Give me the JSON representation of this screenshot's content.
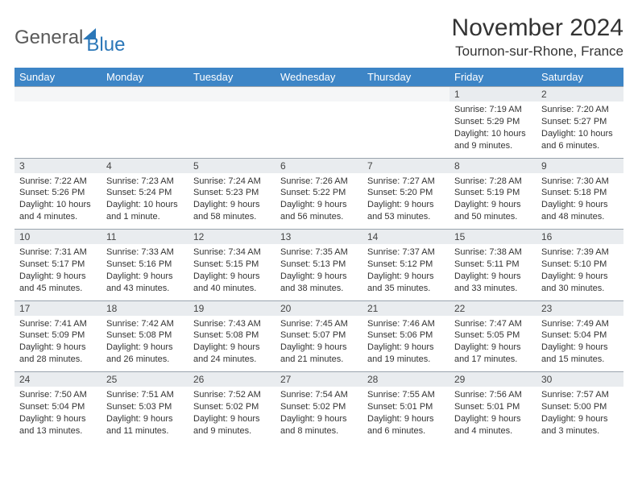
{
  "logo": {
    "general": "General",
    "blue": "Blue"
  },
  "title": "November 2024",
  "location": "Tournon-sur-Rhone, France",
  "colors": {
    "header_bg": "#3d85c6",
    "header_text": "#ffffff",
    "daynum_bg": "#e9ecef",
    "daynum_border": "#9aa4ae",
    "body_text": "#333333",
    "logo_gray": "#5a5a5a",
    "logo_blue": "#2b77b8"
  },
  "typography": {
    "title_fontsize": 30,
    "location_fontsize": 17,
    "header_fontsize": 13,
    "daynum_fontsize": 12,
    "detail_fontsize": 11
  },
  "day_headers": [
    "Sunday",
    "Monday",
    "Tuesday",
    "Wednesday",
    "Thursday",
    "Friday",
    "Saturday"
  ],
  "weeks": [
    {
      "days": [
        {
          "num": "",
          "lines": []
        },
        {
          "num": "",
          "lines": []
        },
        {
          "num": "",
          "lines": []
        },
        {
          "num": "",
          "lines": []
        },
        {
          "num": "",
          "lines": []
        },
        {
          "num": "1",
          "lines": [
            "Sunrise: 7:19 AM",
            "Sunset: 5:29 PM",
            "Daylight: 10 hours",
            "and 9 minutes."
          ]
        },
        {
          "num": "2",
          "lines": [
            "Sunrise: 7:20 AM",
            "Sunset: 5:27 PM",
            "Daylight: 10 hours",
            "and 6 minutes."
          ]
        }
      ]
    },
    {
      "days": [
        {
          "num": "3",
          "lines": [
            "Sunrise: 7:22 AM",
            "Sunset: 5:26 PM",
            "Daylight: 10 hours",
            "and 4 minutes."
          ]
        },
        {
          "num": "4",
          "lines": [
            "Sunrise: 7:23 AM",
            "Sunset: 5:24 PM",
            "Daylight: 10 hours",
            "and 1 minute."
          ]
        },
        {
          "num": "5",
          "lines": [
            "Sunrise: 7:24 AM",
            "Sunset: 5:23 PM",
            "Daylight: 9 hours",
            "and 58 minutes."
          ]
        },
        {
          "num": "6",
          "lines": [
            "Sunrise: 7:26 AM",
            "Sunset: 5:22 PM",
            "Daylight: 9 hours",
            "and 56 minutes."
          ]
        },
        {
          "num": "7",
          "lines": [
            "Sunrise: 7:27 AM",
            "Sunset: 5:20 PM",
            "Daylight: 9 hours",
            "and 53 minutes."
          ]
        },
        {
          "num": "8",
          "lines": [
            "Sunrise: 7:28 AM",
            "Sunset: 5:19 PM",
            "Daylight: 9 hours",
            "and 50 minutes."
          ]
        },
        {
          "num": "9",
          "lines": [
            "Sunrise: 7:30 AM",
            "Sunset: 5:18 PM",
            "Daylight: 9 hours",
            "and 48 minutes."
          ]
        }
      ]
    },
    {
      "days": [
        {
          "num": "10",
          "lines": [
            "Sunrise: 7:31 AM",
            "Sunset: 5:17 PM",
            "Daylight: 9 hours",
            "and 45 minutes."
          ]
        },
        {
          "num": "11",
          "lines": [
            "Sunrise: 7:33 AM",
            "Sunset: 5:16 PM",
            "Daylight: 9 hours",
            "and 43 minutes."
          ]
        },
        {
          "num": "12",
          "lines": [
            "Sunrise: 7:34 AM",
            "Sunset: 5:15 PM",
            "Daylight: 9 hours",
            "and 40 minutes."
          ]
        },
        {
          "num": "13",
          "lines": [
            "Sunrise: 7:35 AM",
            "Sunset: 5:13 PM",
            "Daylight: 9 hours",
            "and 38 minutes."
          ]
        },
        {
          "num": "14",
          "lines": [
            "Sunrise: 7:37 AM",
            "Sunset: 5:12 PM",
            "Daylight: 9 hours",
            "and 35 minutes."
          ]
        },
        {
          "num": "15",
          "lines": [
            "Sunrise: 7:38 AM",
            "Sunset: 5:11 PM",
            "Daylight: 9 hours",
            "and 33 minutes."
          ]
        },
        {
          "num": "16",
          "lines": [
            "Sunrise: 7:39 AM",
            "Sunset: 5:10 PM",
            "Daylight: 9 hours",
            "and 30 minutes."
          ]
        }
      ]
    },
    {
      "days": [
        {
          "num": "17",
          "lines": [
            "Sunrise: 7:41 AM",
            "Sunset: 5:09 PM",
            "Daylight: 9 hours",
            "and 28 minutes."
          ]
        },
        {
          "num": "18",
          "lines": [
            "Sunrise: 7:42 AM",
            "Sunset: 5:08 PM",
            "Daylight: 9 hours",
            "and 26 minutes."
          ]
        },
        {
          "num": "19",
          "lines": [
            "Sunrise: 7:43 AM",
            "Sunset: 5:08 PM",
            "Daylight: 9 hours",
            "and 24 minutes."
          ]
        },
        {
          "num": "20",
          "lines": [
            "Sunrise: 7:45 AM",
            "Sunset: 5:07 PM",
            "Daylight: 9 hours",
            "and 21 minutes."
          ]
        },
        {
          "num": "21",
          "lines": [
            "Sunrise: 7:46 AM",
            "Sunset: 5:06 PM",
            "Daylight: 9 hours",
            "and 19 minutes."
          ]
        },
        {
          "num": "22",
          "lines": [
            "Sunrise: 7:47 AM",
            "Sunset: 5:05 PM",
            "Daylight: 9 hours",
            "and 17 minutes."
          ]
        },
        {
          "num": "23",
          "lines": [
            "Sunrise: 7:49 AM",
            "Sunset: 5:04 PM",
            "Daylight: 9 hours",
            "and 15 minutes."
          ]
        }
      ]
    },
    {
      "days": [
        {
          "num": "24",
          "lines": [
            "Sunrise: 7:50 AM",
            "Sunset: 5:04 PM",
            "Daylight: 9 hours",
            "and 13 minutes."
          ]
        },
        {
          "num": "25",
          "lines": [
            "Sunrise: 7:51 AM",
            "Sunset: 5:03 PM",
            "Daylight: 9 hours",
            "and 11 minutes."
          ]
        },
        {
          "num": "26",
          "lines": [
            "Sunrise: 7:52 AM",
            "Sunset: 5:02 PM",
            "Daylight: 9 hours",
            "and 9 minutes."
          ]
        },
        {
          "num": "27",
          "lines": [
            "Sunrise: 7:54 AM",
            "Sunset: 5:02 PM",
            "Daylight: 9 hours",
            "and 8 minutes."
          ]
        },
        {
          "num": "28",
          "lines": [
            "Sunrise: 7:55 AM",
            "Sunset: 5:01 PM",
            "Daylight: 9 hours",
            "and 6 minutes."
          ]
        },
        {
          "num": "29",
          "lines": [
            "Sunrise: 7:56 AM",
            "Sunset: 5:01 PM",
            "Daylight: 9 hours",
            "and 4 minutes."
          ]
        },
        {
          "num": "30",
          "lines": [
            "Sunrise: 7:57 AM",
            "Sunset: 5:00 PM",
            "Daylight: 9 hours",
            "and 3 minutes."
          ]
        }
      ]
    }
  ]
}
